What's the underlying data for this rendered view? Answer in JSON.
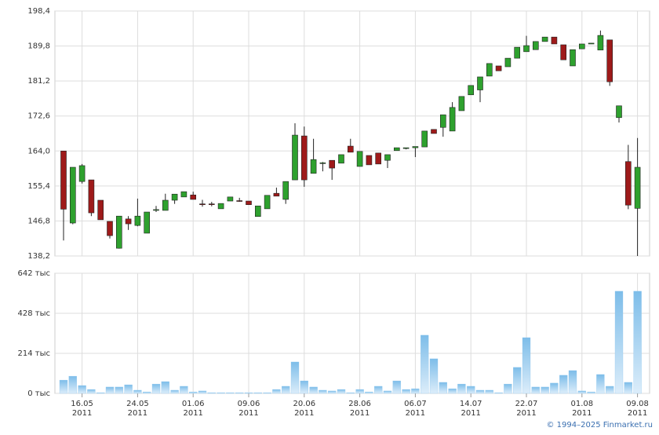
{
  "chart_data": [
    {
      "type": "candlestick",
      "up_color": "#2ea12e",
      "down_color": "#9e1a1a",
      "ylim": [
        138.2,
        198.4
      ],
      "yticks": [
        {
          "value": 138.2,
          "label": "138,2"
        },
        {
          "value": 146.8,
          "label": "146,8"
        },
        {
          "value": 155.4,
          "label": "155,4"
        },
        {
          "value": 164.0,
          "label": "164,0"
        },
        {
          "value": 172.6,
          "label": "172,6"
        },
        {
          "value": 181.2,
          "label": "181,2"
        },
        {
          "value": 189.8,
          "label": "189,8"
        },
        {
          "value": 198.4,
          "label": "198,4"
        }
      ],
      "grid": true,
      "open": [
        164.0,
        146.3,
        156.5,
        156.9,
        151.9,
        146.7,
        140.1,
        147.3,
        145.7,
        143.8,
        149.4,
        149.4,
        151.9,
        152.7,
        153.2,
        151.0,
        151.0,
        149.8,
        151.7,
        151.8,
        151.7,
        147.9,
        149.8,
        153.6,
        152.1,
        156.9,
        167.7,
        158.5,
        161.0,
        161.7,
        161.0,
        165.2,
        160.2,
        162.9,
        163.5,
        161.7,
        164.1,
        164.6,
        164.8,
        165.0,
        169.3,
        169.8,
        168.9,
        173.9,
        177.8,
        179.0,
        182.4,
        184.9,
        184.7,
        186.8,
        188.4,
        188.9,
        190.9,
        192.0,
        190.1,
        184.9,
        189.1,
        190.3,
        188.8,
        191.3,
        172.2,
        161.4,
        149.9
      ],
      "high": [
        164.0,
        160.0,
        160.8,
        156.9,
        151.9,
        146.7,
        148.0,
        148.0,
        152.3,
        149.0,
        150.5,
        153.5,
        153.4,
        154.0,
        154.0,
        152.0,
        151.5,
        151.1,
        152.7,
        152.5,
        151.7,
        150.5,
        153.1,
        155.0,
        156.5,
        170.8,
        170.0,
        167.0,
        161.3,
        161.7,
        163.1,
        167.0,
        163.9,
        162.9,
        163.5,
        163.1,
        164.8,
        164.8,
        165.1,
        168.9,
        169.3,
        172.9,
        176.0,
        177.4,
        180.1,
        182.2,
        185.5,
        184.9,
        186.8,
        189.5,
        192.3,
        190.9,
        192.0,
        192.0,
        190.1,
        188.9,
        190.3,
        190.5,
        193.6,
        191.3,
        175.1,
        165.5,
        167.2
      ],
      "low": [
        142.0,
        146.0,
        156.0,
        148.0,
        147.1,
        142.5,
        140.0,
        144.6,
        145.5,
        143.8,
        149.0,
        149.4,
        151.0,
        152.7,
        152.1,
        150.3,
        150.4,
        149.8,
        151.7,
        151.5,
        150.8,
        147.9,
        149.8,
        152.9,
        151.0,
        156.9,
        155.2,
        158.5,
        159.0,
        156.9,
        161.0,
        163.7,
        160.2,
        160.6,
        160.8,
        159.8,
        164.1,
        164.4,
        162.5,
        165.0,
        168.3,
        167.5,
        168.9,
        173.9,
        177.8,
        176.0,
        182.4,
        183.7,
        184.7,
        186.8,
        188.4,
        188.9,
        190.9,
        190.3,
        186.4,
        184.9,
        189.1,
        190.3,
        188.8,
        180.0,
        171.0,
        149.7,
        138.2
      ],
      "close": [
        149.7,
        160.0,
        160.4,
        148.8,
        147.1,
        143.2,
        148.0,
        146.1,
        148.0,
        149.0,
        149.6,
        151.9,
        153.4,
        154.0,
        152.1,
        150.8,
        150.8,
        151.1,
        152.7,
        151.7,
        150.8,
        150.5,
        153.1,
        152.9,
        156.5,
        167.9,
        156.9,
        161.9,
        161.1,
        159.8,
        163.1,
        163.7,
        163.9,
        160.6,
        160.8,
        163.1,
        164.8,
        164.8,
        165.1,
        168.9,
        168.3,
        172.9,
        174.7,
        177.4,
        180.1,
        182.2,
        185.5,
        183.7,
        186.8,
        189.5,
        189.9,
        190.9,
        192.0,
        190.3,
        186.4,
        188.9,
        190.3,
        190.5,
        192.4,
        181.0,
        175.1,
        150.7,
        160.0
      ]
    },
    {
      "type": "bar",
      "color": "#8ec7ef",
      "ylim": [
        0,
        642
      ],
      "yticks": [
        {
          "value": 0,
          "label": "0 тыс"
        },
        {
          "value": 214,
          "label": "214 тыс"
        },
        {
          "value": 428,
          "label": "428 тыс"
        },
        {
          "value": 642,
          "label": "642 тыс"
        }
      ],
      "grid": true,
      "categories": [
        null,
        null,
        "16.05",
        null,
        null,
        null,
        null,
        null,
        "24.05",
        null,
        null,
        null,
        null,
        null,
        "01.06",
        null,
        null,
        null,
        null,
        null,
        "09.06",
        null,
        null,
        null,
        null,
        null,
        "20.06",
        null,
        null,
        null,
        null,
        null,
        "28.06",
        null,
        null,
        null,
        null,
        null,
        "06.07",
        null,
        null,
        null,
        null,
        null,
        "14.07",
        null,
        null,
        null,
        null,
        null,
        "22.07",
        null,
        null,
        null,
        null,
        null,
        "01.08",
        null,
        null,
        null,
        null,
        null,
        "09.08"
      ],
      "category_years": [
        null,
        null,
        "2011",
        null,
        null,
        null,
        null,
        null,
        "2011",
        null,
        null,
        null,
        null,
        null,
        "2011",
        null,
        null,
        null,
        null,
        null,
        "2011",
        null,
        null,
        null,
        null,
        null,
        "2011",
        null,
        null,
        null,
        null,
        null,
        "2011",
        null,
        null,
        null,
        null,
        null,
        "2011",
        null,
        null,
        null,
        null,
        null,
        "2011",
        null,
        null,
        null,
        null,
        null,
        "2011",
        null,
        null,
        null,
        null,
        null,
        "2011",
        null,
        null,
        null,
        null,
        null,
        "2011"
      ],
      "values": [
        71,
        92,
        42,
        21,
        4,
        34,
        34,
        46,
        17,
        8,
        50,
        63,
        17,
        38,
        8,
        13,
        4,
        4,
        4,
        4,
        4,
        4,
        4,
        21,
        38,
        168,
        67,
        34,
        17,
        13,
        21,
        4,
        21,
        8,
        38,
        13,
        67,
        21,
        25,
        311,
        185,
        59,
        25,
        50,
        38,
        17,
        17,
        4,
        50,
        139,
        298,
        34,
        34,
        55,
        97,
        122,
        13,
        8,
        101,
        38,
        546,
        59,
        546
      ]
    }
  ],
  "credit": "© 1994–2025 Finmarket.ru"
}
